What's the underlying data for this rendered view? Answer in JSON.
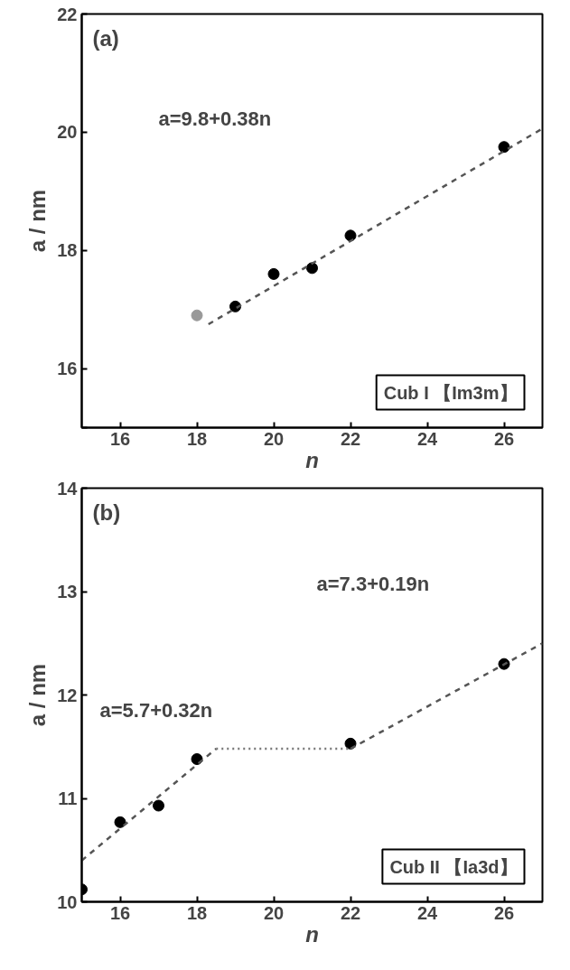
{
  "chart_data": [
    {
      "type": "scatter",
      "title": "(a)",
      "xlabel": "n",
      "ylabel": "a / nm",
      "xlim": [
        15,
        27
      ],
      "ylim": [
        15,
        22
      ],
      "xticks": [
        16,
        18,
        20,
        22,
        24,
        26
      ],
      "yticks": [
        {
          "value": 15,
          "label": null
        },
        16,
        18,
        20,
        22
      ],
      "grid": false,
      "series": [
        {
          "marker": "circle",
          "x": [
            18,
            19,
            20,
            21,
            22,
            26
          ],
          "values": [
            16.9,
            17.05,
            17.6,
            17.7,
            18.25,
            19.75
          ],
          "colors": [
            "#999999",
            "#000000",
            "#000000",
            "#000000",
            "#000000",
            "#000000"
          ]
        },
        {
          "type": "line",
          "x": [
            18.3,
            27
          ],
          "values": [
            16.75,
            20.06
          ],
          "color": "#555555",
          "line_style": "dashed"
        }
      ],
      "annotations": [
        "a=9.8+0.38n",
        "Cub I 【Im3m】"
      ]
    },
    {
      "type": "scatter",
      "title": "(b)",
      "xlabel": "n",
      "ylabel": "a / nm",
      "xlim": [
        15,
        27
      ],
      "ylim": [
        10,
        14
      ],
      "xticks": [
        16,
        18,
        20,
        22,
        24,
        26
      ],
      "yticks": [
        10,
        11,
        12,
        13,
        14
      ],
      "grid": false,
      "series": [
        {
          "marker": "circle",
          "x": [
            15,
            16,
            17,
            18,
            22,
            26
          ],
          "values": [
            10.12,
            10.77,
            10.93,
            11.38,
            11.53,
            12.3
          ],
          "color": "#000000"
        },
        {
          "type": "line",
          "x": [
            15,
            18.5
          ],
          "values": [
            10.4,
            11.48
          ],
          "color": "#555555",
          "line_style": "dashed"
        },
        {
          "type": "line",
          "x": [
            18.5,
            22
          ],
          "values": [
            11.48,
            11.48
          ],
          "color": "#777777",
          "line_style": "dotted"
        },
        {
          "type": "line",
          "x": [
            22,
            27
          ],
          "values": [
            11.48,
            12.5
          ],
          "color": "#555555",
          "line_style": "dashed"
        }
      ],
      "annotations": [
        "a=5.7+0.32n",
        "a=7.3+0.19n",
        "Cub II 【Ia3d】"
      ]
    }
  ]
}
